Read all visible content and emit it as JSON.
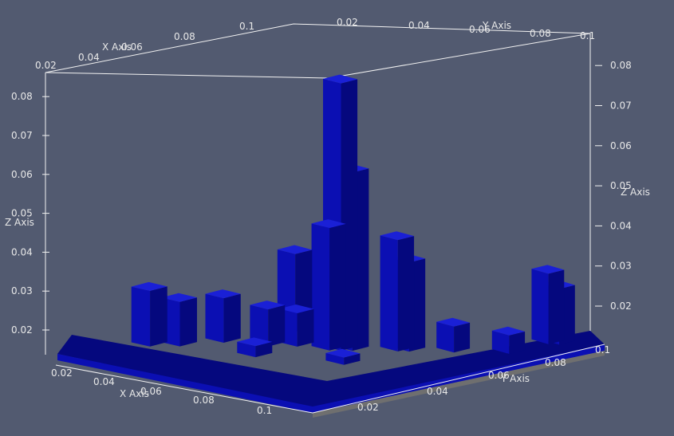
{
  "chart_data": {
    "type": "3d-bar",
    "colors": {
      "background": "#525a70",
      "bars": "#0b0fb3",
      "bars_top": "#1a20d6",
      "bars_side": "#05087e",
      "axes": "#f2f2f2",
      "base": "#6f6f6f"
    },
    "axes": {
      "x": {
        "label": "X Axis",
        "range": [
          0.02,
          0.1
        ],
        "ticks": [
          "0.02",
          "0.04",
          "0.06",
          "0.08",
          "0.1"
        ]
      },
      "y": {
        "label": "Y Axis",
        "range": [
          0.0,
          0.1
        ],
        "ticks": [
          "0.02",
          "0.04",
          "0.06",
          "0.08",
          "0.1"
        ]
      },
      "z": {
        "label": "Z Axis",
        "range": [
          0.012,
          0.085
        ],
        "ticks": [
          "0.02",
          "0.03",
          "0.04",
          "0.05",
          "0.06",
          "0.07",
          "0.08"
        ]
      }
    },
    "grid": false,
    "legend": "none",
    "bars_description": "Grid of blue rectangular columns over an x-y floor; heights are estimated from the z-axis.",
    "bars": [
      {
        "x": 0.06,
        "y": 0.05,
        "z": 0.084
      },
      {
        "x": 0.062,
        "y": 0.052,
        "z": 0.06
      },
      {
        "x": 0.058,
        "y": 0.048,
        "z": 0.045
      },
      {
        "x": 0.07,
        "y": 0.06,
        "z": 0.042
      },
      {
        "x": 0.072,
        "y": 0.062,
        "z": 0.036
      },
      {
        "x": 0.04,
        "y": 0.055,
        "z": 0.033
      },
      {
        "x": 0.045,
        "y": 0.058,
        "z": 0.032
      },
      {
        "x": 0.09,
        "y": 0.095,
        "z": 0.031
      },
      {
        "x": 0.092,
        "y": 0.097,
        "z": 0.027
      },
      {
        "x": 0.025,
        "y": 0.02,
        "z": 0.027
      },
      {
        "x": 0.03,
        "y": 0.025,
        "z": 0.024
      },
      {
        "x": 0.035,
        "y": 0.035,
        "z": 0.024
      },
      {
        "x": 0.045,
        "y": 0.04,
        "z": 0.022
      },
      {
        "x": 0.05,
        "y": 0.045,
        "z": 0.021
      },
      {
        "x": 0.08,
        "y": 0.07,
        "z": 0.019
      },
      {
        "x": 0.09,
        "y": 0.08,
        "z": 0.017
      },
      {
        "x": 0.05,
        "y": 0.03,
        "z": 0.015
      },
      {
        "x": 0.07,
        "y": 0.04,
        "z": 0.014
      }
    ]
  }
}
